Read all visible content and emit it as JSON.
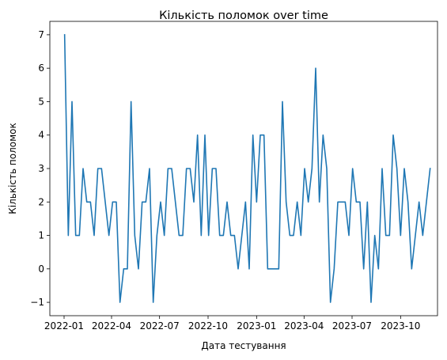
{
  "chart_data": {
    "type": "line",
    "title": "Кількість поломок over time",
    "xlabel": "Дата тестування",
    "ylabel": "Кількість поломок",
    "x_range": [
      "2021-12-05",
      "2023-12-10"
    ],
    "ylim": [
      -1.4,
      7.4
    ],
    "grid": false,
    "x_ticks": [
      "2022-01",
      "2022-04",
      "2022-07",
      "2022-10",
      "2023-01",
      "2023-04",
      "2023-07",
      "2023-10"
    ],
    "x_tick_dates": [
      "2022-01-01",
      "2022-04-01",
      "2022-07-01",
      "2022-10-01",
      "2023-01-01",
      "2023-04-01",
      "2023-07-01",
      "2023-10-01"
    ],
    "y_ticks": [
      -1,
      0,
      1,
      2,
      3,
      4,
      5,
      6,
      7
    ],
    "series": [
      {
        "color": "#1f77b4",
        "x_start": "2022-01-02",
        "x_step_days": 7,
        "values": [
          7,
          1,
          5,
          1,
          1,
          3,
          2,
          2,
          1,
          3,
          3,
          2,
          1,
          2,
          2,
          -1,
          0,
          0,
          5,
          1,
          0,
          2,
          2,
          3,
          -1,
          1,
          2,
          1,
          3,
          3,
          2,
          1,
          1,
          3,
          3,
          2,
          4,
          1,
          4,
          1,
          3,
          3,
          1,
          1,
          2,
          1,
          1,
          0,
          1,
          2,
          0,
          4,
          2,
          4,
          4,
          0,
          0,
          0,
          0,
          5,
          2,
          1,
          1,
          2,
          1,
          3,
          2,
          3,
          6,
          2,
          4,
          3,
          -1,
          0,
          2,
          2,
          2,
          1,
          3,
          2,
          2,
          0,
          2,
          -1,
          1,
          0,
          3,
          1,
          1,
          4,
          3,
          1,
          3,
          2,
          0,
          1,
          2,
          1,
          2,
          3
        ]
      }
    ]
  }
}
